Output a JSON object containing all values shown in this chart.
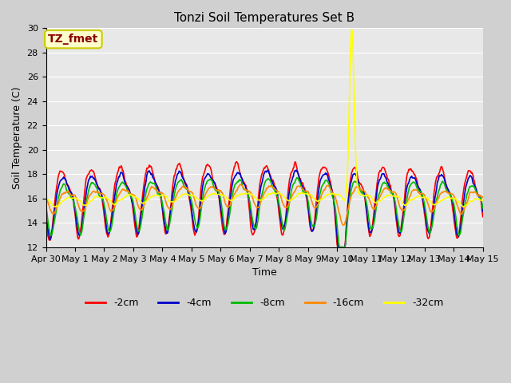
{
  "title": "Tonzi Soil Temperatures Set B",
  "xlabel": "Time",
  "ylabel": "Soil Temperature (C)",
  "ylim": [
    12,
    30
  ],
  "yticks": [
    12,
    14,
    16,
    18,
    20,
    22,
    24,
    26,
    28,
    30
  ],
  "annotation_text": "TZ_fmet",
  "annotation_color": "#8b0000",
  "annotation_bg": "#ffffcc",
  "annotation_edge": "#cccc00",
  "series_colors": {
    "-2cm": "#ff0000",
    "-4cm": "#0000cc",
    "-8cm": "#00bb00",
    "-16cm": "#ff8800",
    "-32cm": "#ffff00"
  },
  "series_lw": 1.2,
  "xtick_labels": [
    "Apr 30",
    "May 1",
    "May 2",
    "May 3",
    "May 4",
    "May 5",
    "May 6",
    "May 7",
    "May 8",
    "May 9",
    "May 10",
    "May 11",
    "May 12",
    "May 13",
    "May 14",
    "May 15"
  ],
  "xtick_positions": [
    0,
    1,
    2,
    3,
    4,
    5,
    6,
    7,
    8,
    9,
    10,
    11,
    12,
    13,
    14,
    15
  ],
  "figsize": [
    6.4,
    4.8
  ],
  "dpi": 100,
  "fig_facecolor": "#d0d0d0",
  "ax_facecolor": "#e8e8e8",
  "grid_color": "#ffffff",
  "title_fontsize": 11,
  "label_fontsize": 9,
  "tick_fontsize": 8,
  "legend_fontsize": 9
}
